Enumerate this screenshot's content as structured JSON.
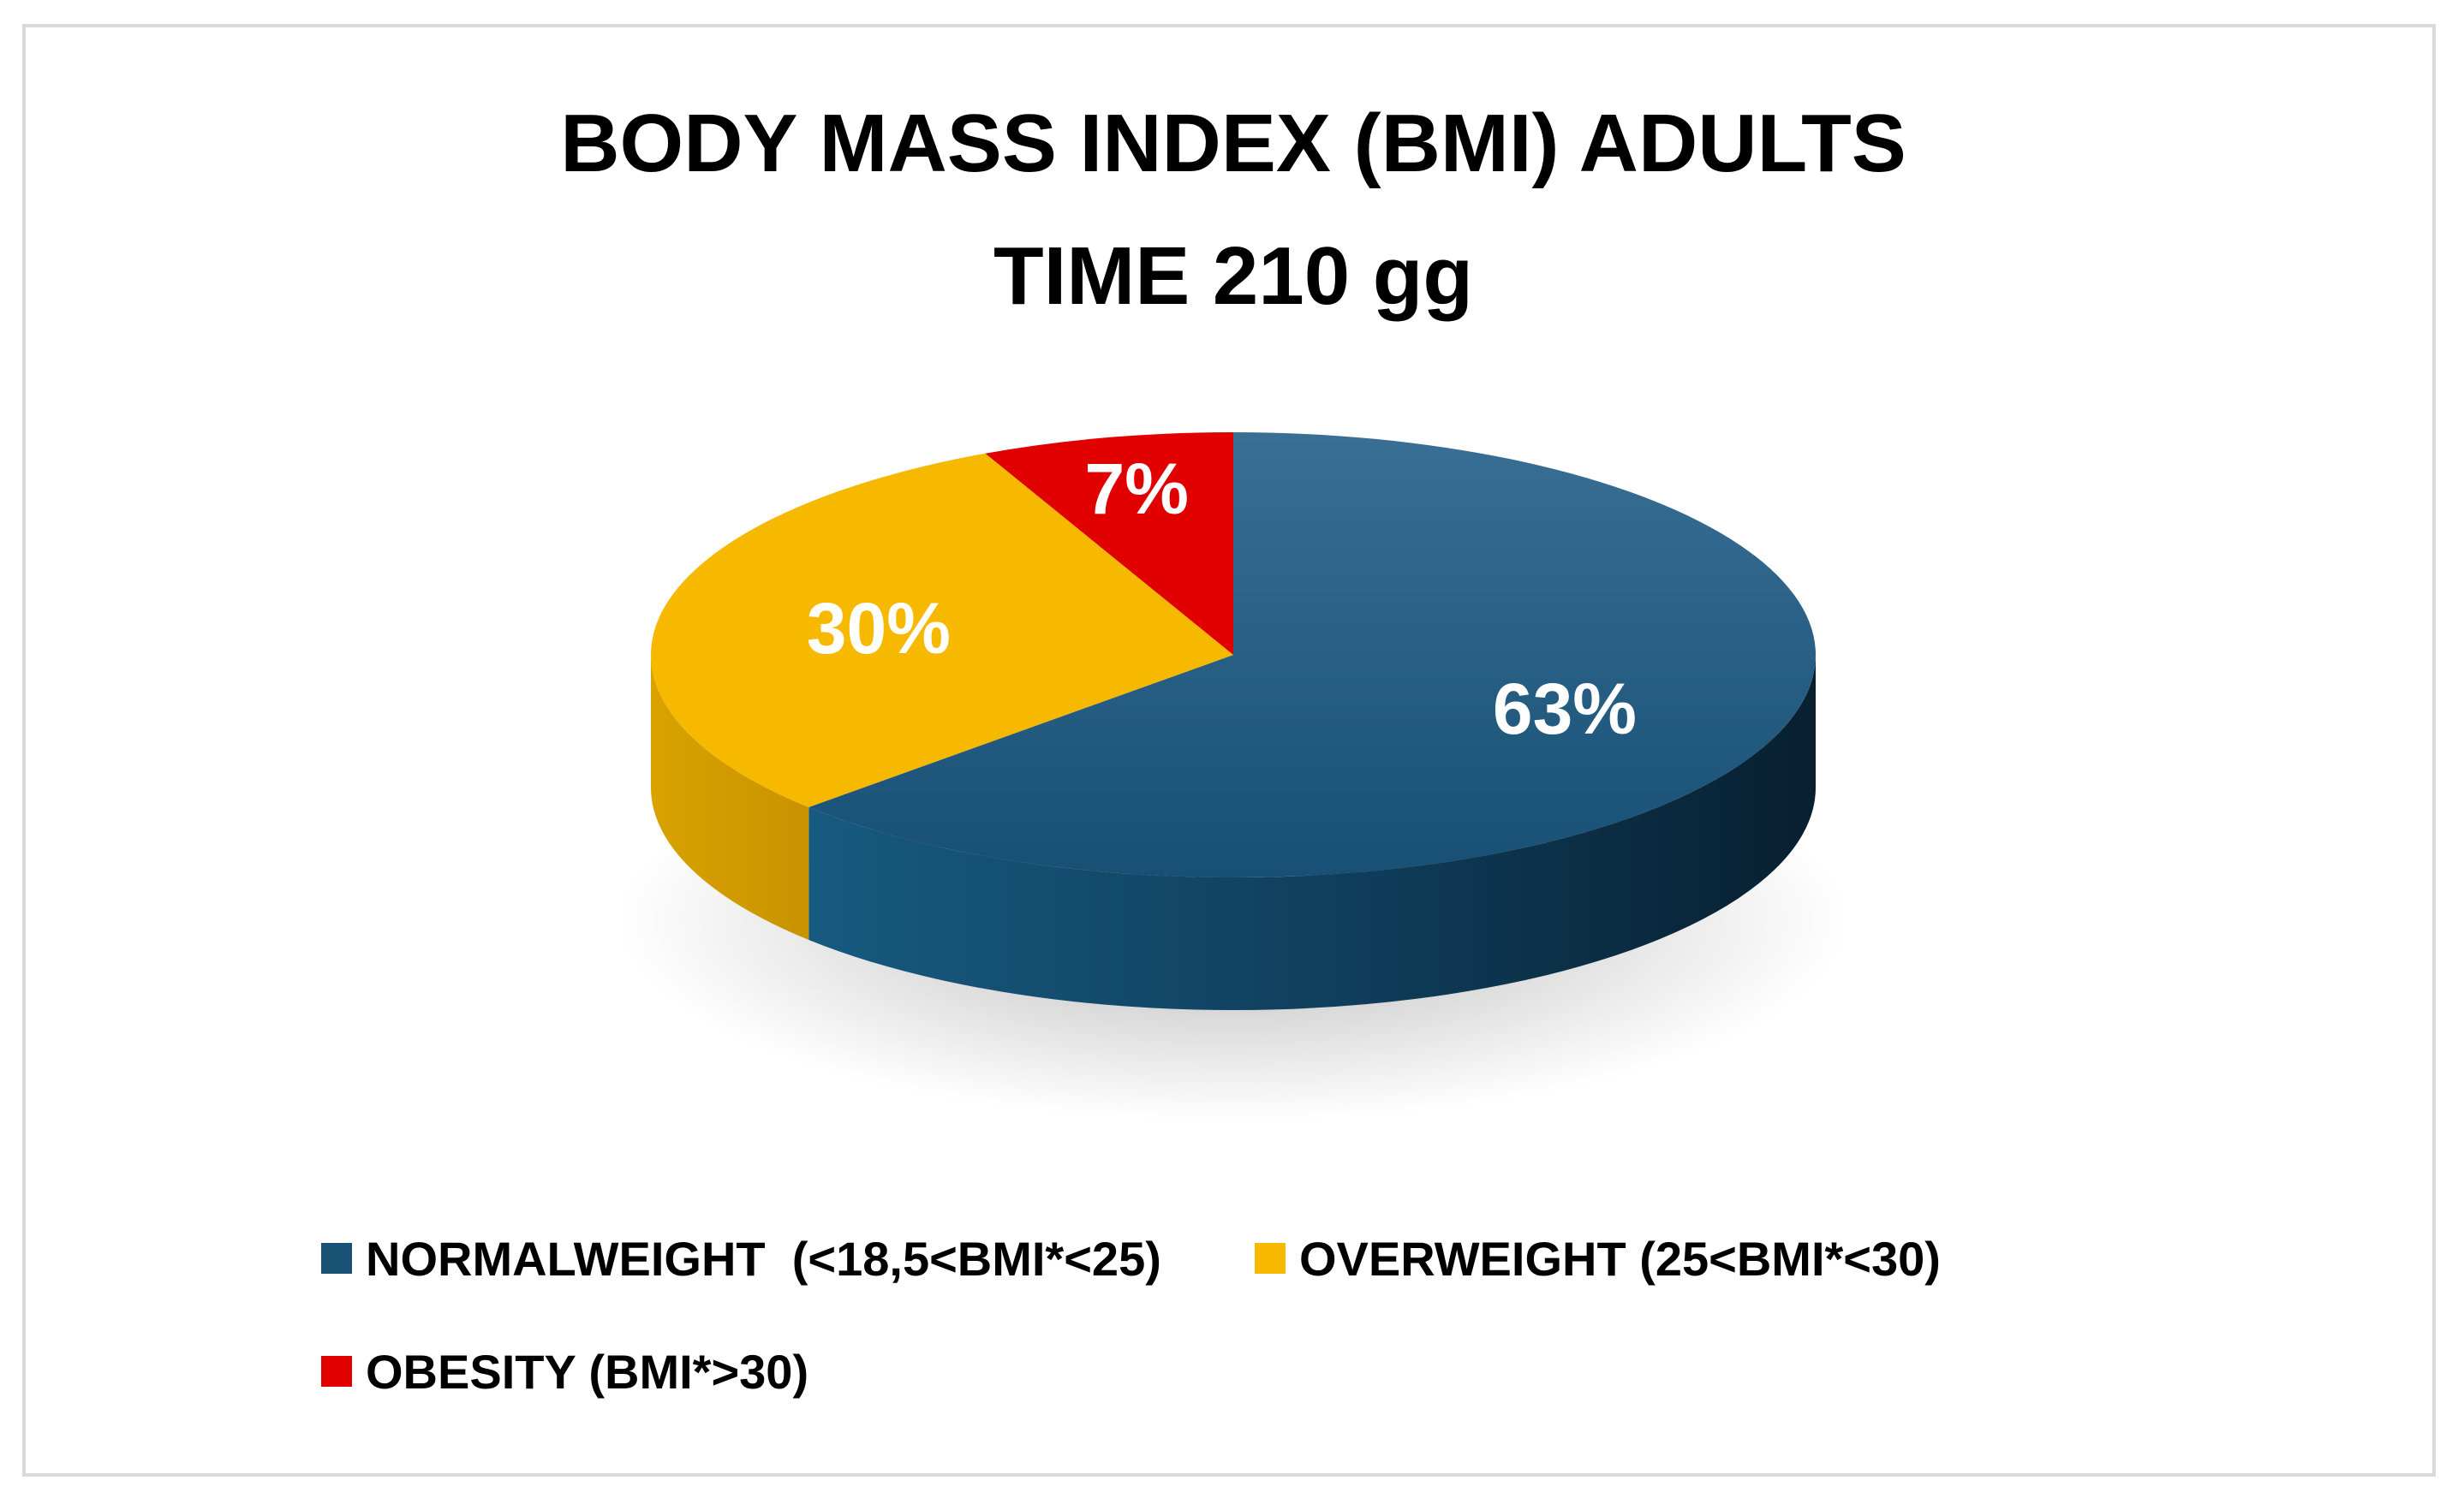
{
  "chart_data": {
    "type": "pie",
    "title": "BODY MASS INDEX (BMI) ADULTS",
    "subtitle": "TIME 210 gg",
    "slices": [
      {
        "label": "NORMALWEIGHT  (<18,5<BMI*<25)",
        "value": 63,
        "display": "63%",
        "color": "#1a5276"
      },
      {
        "label": "OVERWEIGHT (25<BMI*<30)",
        "value": 30,
        "display": "30%",
        "color": "#f7b900"
      },
      {
        "label": "OBESITY (BMI*>30)",
        "value": 7,
        "display": "7%",
        "color": "#e00000"
      }
    ],
    "legend_position": "bottom",
    "style": "3d"
  }
}
